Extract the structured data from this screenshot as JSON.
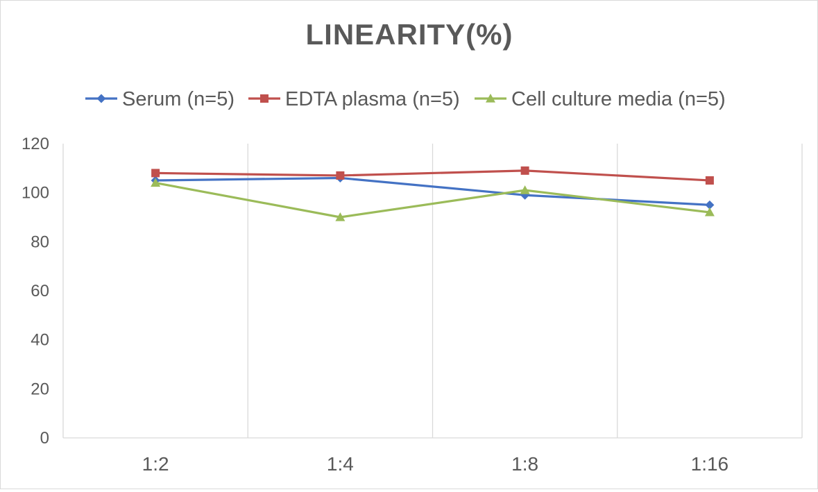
{
  "chart_data": {
    "type": "line",
    "title": "LINEARITY(%)",
    "xlabel": "",
    "ylabel": "",
    "categories": [
      "1:2",
      "1:4",
      "1:8",
      "1:16"
    ],
    "ylim": [
      0,
      120
    ],
    "yticks": [
      0,
      20,
      40,
      60,
      80,
      100,
      120
    ],
    "grid": "vertical",
    "legend_position": "top",
    "series": [
      {
        "name": "Serum (n=5)",
        "values": [
          105,
          106,
          99,
          95
        ],
        "color": "#4472c4",
        "marker": "diamond"
      },
      {
        "name": "EDTA plasma (n=5)",
        "values": [
          108,
          107,
          109,
          105
        ],
        "color": "#c0504d",
        "marker": "square"
      },
      {
        "name": "Cell culture media (n=5)",
        "values": [
          104,
          90,
          101,
          92
        ],
        "color": "#9bbb59",
        "marker": "triangle"
      }
    ]
  }
}
